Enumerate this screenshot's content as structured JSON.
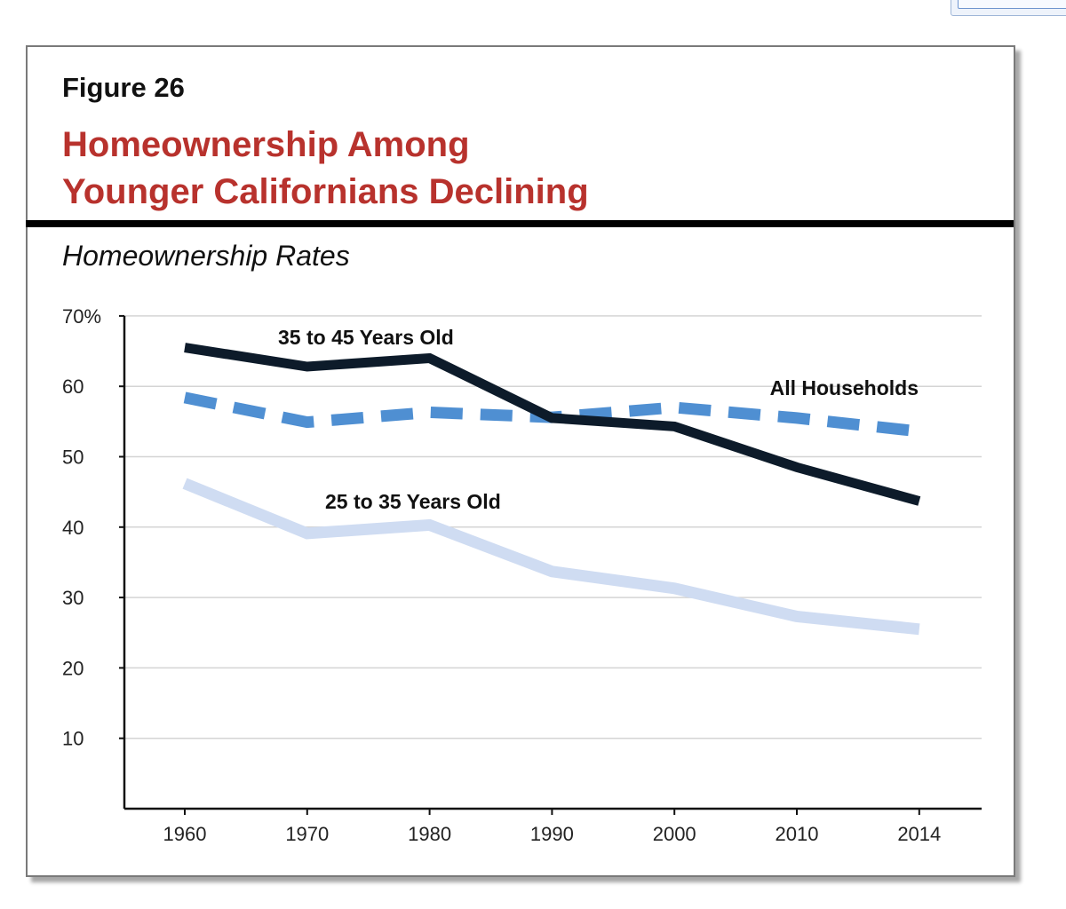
{
  "figure": {
    "label": "Figure 26",
    "title_line1": "Homeownership Among",
    "title_line2": "Younger Californians Declining",
    "subtitle": "Homeownership Rates"
  },
  "colors": {
    "title": "#b8322d",
    "series_35_45": "#0d1b2a",
    "series_all": "#4f8fd2",
    "series_25_35": "#cfdcf2",
    "grid": "#d4d4d4",
    "axis": "#111111"
  },
  "chart_data": {
    "type": "line",
    "title": "Homeownership Rates",
    "xlabel": "",
    "ylabel": "",
    "categories": [
      "1960",
      "1970",
      "1980",
      "1990",
      "2000",
      "2010",
      "2014"
    ],
    "ylim": [
      0,
      70
    ],
    "yticks": [
      10,
      20,
      30,
      40,
      50,
      60,
      70
    ],
    "ytick_labels": [
      "10",
      "20",
      "30",
      "40",
      "50",
      "60",
      "70%"
    ],
    "grid": true,
    "series": [
      {
        "name": "35 to 45 Years Old",
        "key": "series_35_45",
        "style": "solid",
        "values": [
          65.5,
          62.8,
          64.0,
          55.5,
          54.3,
          48.5,
          43.7
        ]
      },
      {
        "name": "All Households",
        "key": "series_all",
        "style": "dashed",
        "values": [
          58.4,
          54.9,
          56.3,
          55.6,
          57.0,
          55.5,
          53.6
        ]
      },
      {
        "name": "25 to 35 Years Old",
        "key": "series_25_35",
        "style": "solid",
        "values": [
          46.2,
          39.1,
          40.3,
          33.7,
          31.3,
          27.3,
          25.5
        ]
      }
    ]
  }
}
